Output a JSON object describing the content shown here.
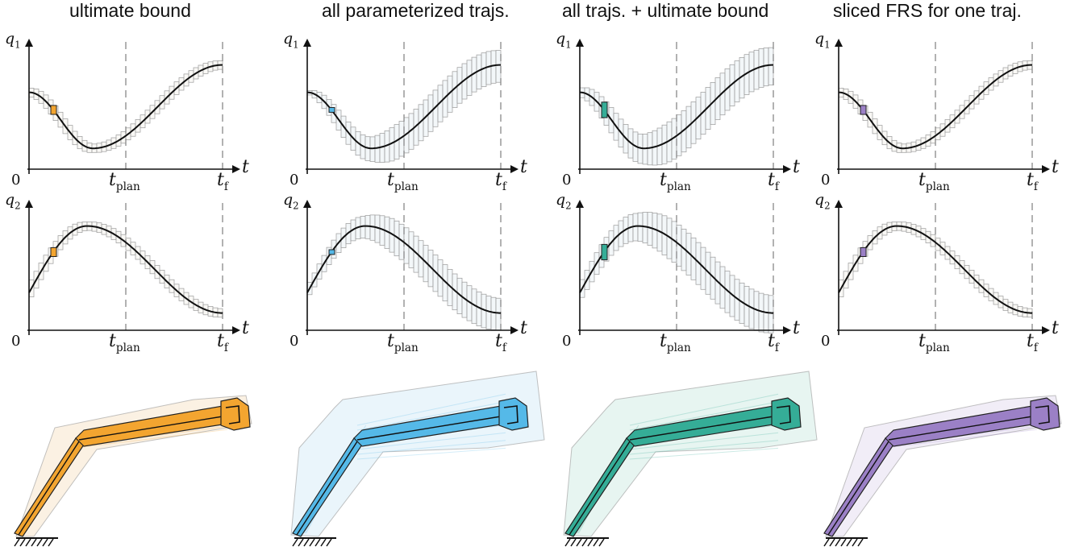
{
  "panels": [
    {
      "title": "ultimate bound",
      "color": "#f3a530",
      "dark": "#9a5a00",
      "light": "#f8e6cc",
      "spread": 0.0,
      "ub": true
    },
    {
      "title": "all parameterized trajs.",
      "color": "#55b9e8",
      "dark": "#1b6a92",
      "light": "#d8ecf7",
      "spread": 1.0,
      "ub": false
    },
    {
      "title": "all trajs. + ultimate bound",
      "color": "#35ad97",
      "dark": "#14624f",
      "light": "#d4ede6",
      "spread": 1.0,
      "ub": true
    },
    {
      "title": "sliced FRS for one traj.",
      "color": "#9b80c6",
      "dark": "#4f3a76",
      "light": "#e5def1",
      "spread": 0.0,
      "ub": true
    }
  ],
  "axes": {
    "q1_label": "q",
    "q1_sub": "1",
    "q2_label": "q",
    "q2_sub": "2",
    "t_label": "t",
    "origin": "0",
    "t_plan": "t",
    "t_plan_sub": "plan",
    "t_f": "t",
    "t_f_sub": "f"
  }
}
